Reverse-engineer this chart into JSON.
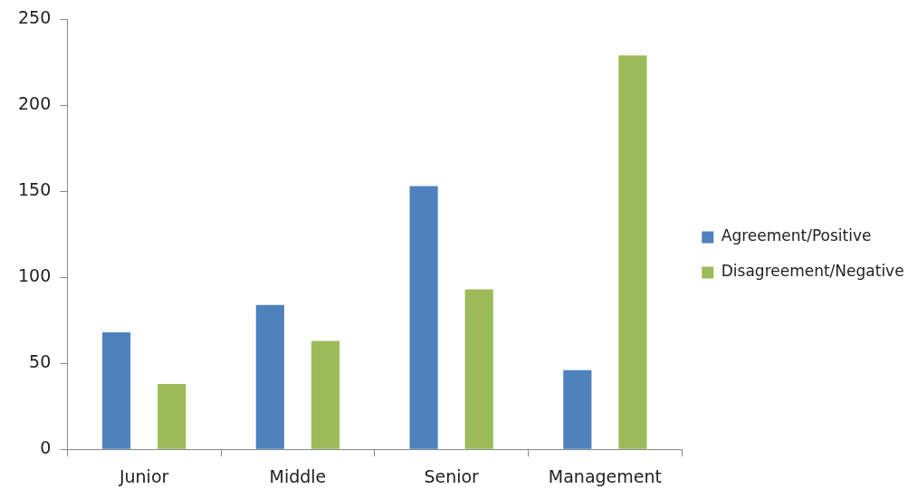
{
  "chart_data": {
    "type": "bar",
    "categories": [
      "Junior",
      "Middle",
      "Senior",
      "Management"
    ],
    "series": [
      {
        "name": "Agreement/Positive",
        "color": "#4f81bd",
        "values": [
          68,
          84,
          153,
          46
        ]
      },
      {
        "name": "Disagreement/Negative",
        "color": "#9bbb59",
        "values": [
          38,
          63,
          93,
          229
        ]
      }
    ],
    "ylim": [
      0,
      250
    ],
    "yticks": [
      0,
      50,
      100,
      150,
      200,
      250
    ],
    "grid": false,
    "legend": "right"
  }
}
